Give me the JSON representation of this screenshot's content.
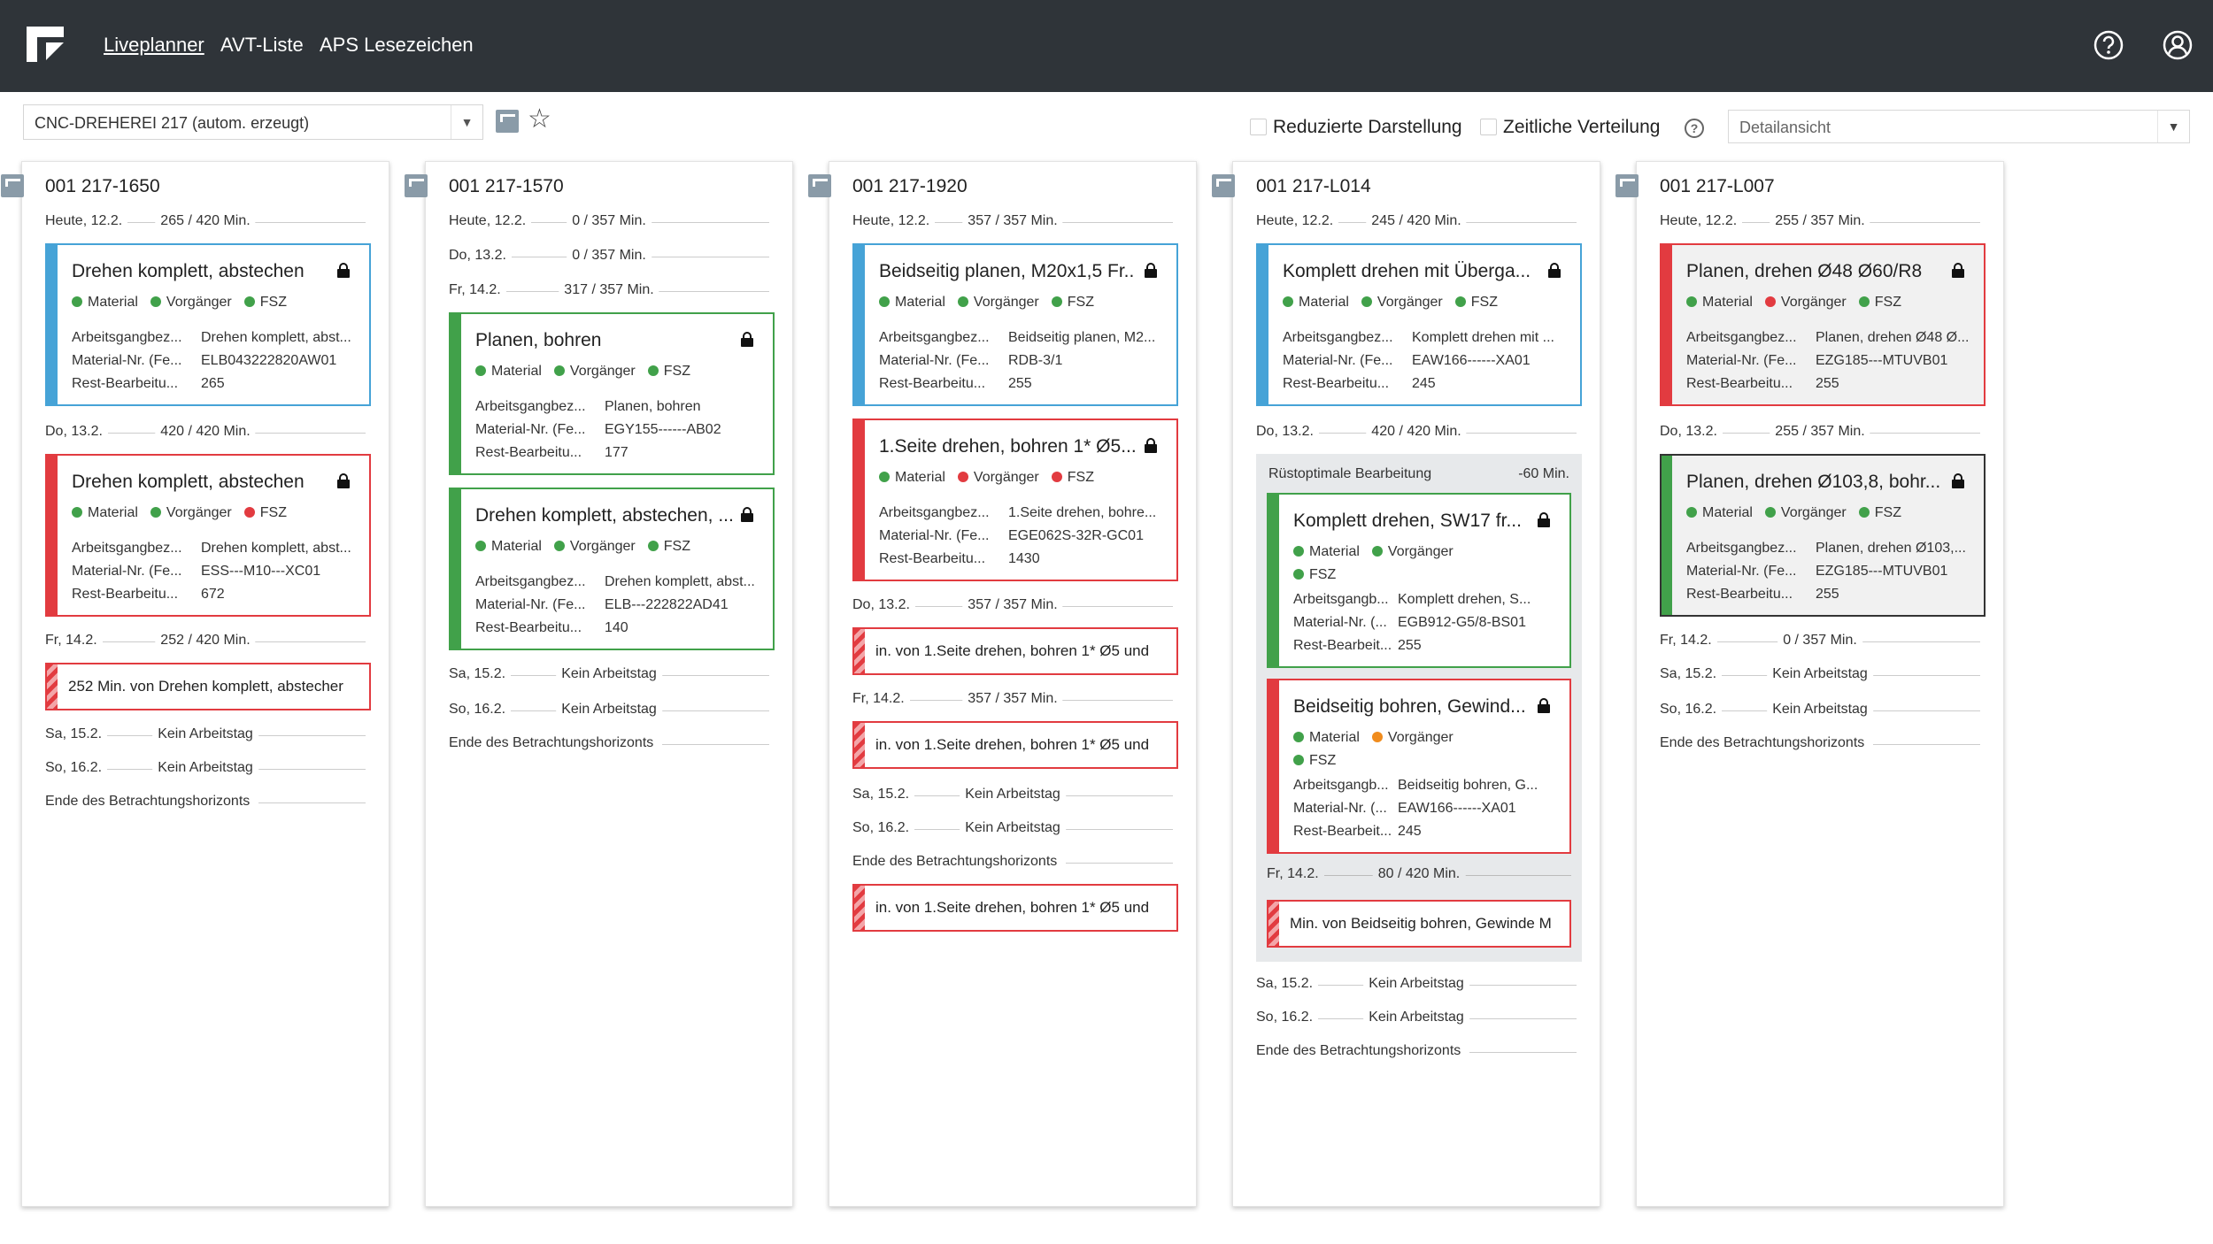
{
  "nav": {
    "items": [
      "Liveplanner",
      "AVT-Liste",
      "APS Lesezeichen"
    ],
    "help_icon": "help-icon",
    "user_icon": "user-icon"
  },
  "toolbar": {
    "resource": "CNC-DREHEREI 217 (autom. erzeugt)",
    "reduced": "Reduzierte Darstellung",
    "temporal": "Zeitliche Verteilung",
    "view": "Detailansicht"
  },
  "colors": {
    "blue": "#46a3d7",
    "red": "#e23b40",
    "green": "#41a14a",
    "orange": "#f08c1e",
    "header": "#2f3439"
  },
  "dot_labels": {
    "material": "Material",
    "pred": "Vorgänger",
    "fsz": "FSZ"
  },
  "columns": [
    {
      "title": "001 217-1650",
      "rows": [
        {
          "date": "Heute, 12.2.",
          "cap": "265 / 420 Min."
        },
        {
          "date": "Do, 13.2.",
          "cap": "420 / 420 Min."
        },
        {
          "date": "Fr, 14.2.",
          "cap": "252 / 420 Min."
        },
        {
          "date": "Sa, 15.2.",
          "cap": "Kein Arbeitstag"
        },
        {
          "date": "So, 16.2.",
          "cap": "Kein Arbeitstag"
        },
        {
          "date": "Ende des Betrachtungshorizonts",
          "cap": ""
        }
      ],
      "cards": [
        {
          "title": "Drehen komplett, abstechen",
          "k1": "Arbeitsgangbez...",
          "v1": "Drehen komplett, abst...",
          "k2": "Material-Nr. (Fe...",
          "v2": "ELB043222820AW01",
          "k3": "Rest-Bearbeitu...",
          "v3": "265"
        },
        {
          "title": "Drehen komplett, abstechen",
          "k1": "Arbeitsgangbez...",
          "v1": "Drehen komplett, abst...",
          "k2": "Material-Nr. (Fe...",
          "v2": "ESS---M10---XC01",
          "k3": "Rest-Bearbeitu...",
          "v3": "672"
        }
      ],
      "strips": [
        "252 Min. von Drehen komplett, abstecher"
      ]
    },
    {
      "title": "001 217-1570",
      "rows": [
        {
          "date": "Heute, 12.2.",
          "cap": "0 / 357 Min."
        },
        {
          "date": "Do, 13.2.",
          "cap": "0 / 357 Min."
        },
        {
          "date": "Fr, 14.2.",
          "cap": "317 / 357 Min."
        },
        {
          "date": "Sa, 15.2.",
          "cap": "Kein Arbeitstag"
        },
        {
          "date": "So, 16.2.",
          "cap": "Kein Arbeitstag"
        },
        {
          "date": "Ende des Betrachtungshorizonts",
          "cap": ""
        }
      ],
      "cards": [
        {
          "title": "Planen, bohren",
          "k1": "Arbeitsgangbez...",
          "v1": "Planen, bohren",
          "k2": "Material-Nr. (Fe...",
          "v2": "EGY155------AB02",
          "k3": "Rest-Bearbeitu...",
          "v3": "177"
        },
        {
          "title": "Drehen komplett, abstechen, ...",
          "k1": "Arbeitsgangbez...",
          "v1": "Drehen komplett, abst...",
          "k2": "Material-Nr. (Fe...",
          "v2": "ELB---222822AD41",
          "k3": "Rest-Bearbeitu...",
          "v3": "140"
        }
      ]
    },
    {
      "title": "001 217-1920",
      "rows": [
        {
          "date": "Heute, 12.2.",
          "cap": "357 / 357 Min."
        },
        {
          "date": "Do, 13.2.",
          "cap": "357 / 357 Min."
        },
        {
          "date": "Fr, 14.2.",
          "cap": "357 / 357 Min."
        },
        {
          "date": "Sa, 15.2.",
          "cap": "Kein Arbeitstag"
        },
        {
          "date": "So, 16.2.",
          "cap": "Kein Arbeitstag"
        },
        {
          "date": "Ende des Betrachtungshorizonts",
          "cap": ""
        }
      ],
      "cards": [
        {
          "title": "Beidseitig planen, M20x1,5 Fr...",
          "k1": "Arbeitsgangbez...",
          "v1": "Beidseitig planen, M2...",
          "k2": "Material-Nr. (Fe...",
          "v2": "RDB-3/1",
          "k3": "Rest-Bearbeitu...",
          "v3": "255"
        },
        {
          "title": "1.Seite drehen, bohren 1* Ø5...",
          "k1": "Arbeitsgangbez...",
          "v1": "1.Seite drehen, bohre...",
          "k2": "Material-Nr. (Fe...",
          "v2": "EGE062S-32R-GC01",
          "k3": "Rest-Bearbeitu...",
          "v3": "1430"
        }
      ],
      "strips": [
        "in. von 1.Seite drehen, bohren 1* Ø5 und",
        "in. von 1.Seite drehen, bohren 1* Ø5 und",
        "in. von 1.Seite drehen, bohren 1* Ø5 und"
      ]
    },
    {
      "title": "001 217-L014",
      "rows": [
        {
          "date": "Heute, 12.2.",
          "cap": "245 / 420 Min."
        },
        {
          "date": "Do, 13.2.",
          "cap": "420 / 420 Min."
        },
        {
          "date": "Fr, 14.2.",
          "cap": "80 / 420 Min."
        },
        {
          "date": "Sa, 15.2.",
          "cap": "Kein Arbeitstag"
        },
        {
          "date": "So, 16.2.",
          "cap": "Kein Arbeitstag"
        },
        {
          "date": "Ende des Betrachtungshorizonts",
          "cap": ""
        }
      ],
      "cards": [
        {
          "title": "Komplett drehen mit Überga...",
          "k1": "Arbeitsgangbez...",
          "v1": "Komplett drehen mit ...",
          "k2": "Material-Nr. (Fe...",
          "v2": "EAW166------XA01",
          "k3": "Rest-Bearbeitu...",
          "v3": "245"
        },
        {
          "title": "Komplett drehen, SW17 fr...",
          "k1": "Arbeitsgangb...",
          "v1": "Komplett drehen, S...",
          "k2": "Material-Nr. (...",
          "v2": "EGB912-G5/8-BS01",
          "k3": "Rest-Bearbeit...",
          "v3": "255"
        },
        {
          "title": "Beidseitig bohren, Gewind...",
          "k1": "Arbeitsgangb...",
          "v1": "Beidseitig bohren, G...",
          "k2": "Material-Nr. (...",
          "v2": "EAW166------XA01",
          "k3": "Rest-Bearbeit...",
          "v3": "245"
        }
      ],
      "group": {
        "label": "Rüstoptimale Bearbeitung",
        "value": "-60 Min."
      },
      "strips": [
        "Min. von Beidseitig bohren, Gewinde M"
      ]
    },
    {
      "title": "001 217-L007",
      "rows": [
        {
          "date": "Heute, 12.2.",
          "cap": "255 / 357 Min."
        },
        {
          "date": "Do, 13.2.",
          "cap": "255 / 357 Min."
        },
        {
          "date": "Fr, 14.2.",
          "cap": "0 / 357 Min."
        },
        {
          "date": "Sa, 15.2.",
          "cap": "Kein Arbeitstag"
        },
        {
          "date": "So, 16.2.",
          "cap": "Kein Arbeitstag"
        },
        {
          "date": "Ende des Betrachtungshorizonts",
          "cap": ""
        }
      ],
      "cards": [
        {
          "title": "Planen, drehen Ø48 Ø60/R8",
          "k1": "Arbeitsgangbez...",
          "v1": "Planen, drehen Ø48 Ø...",
          "k2": "Material-Nr. (Fe...",
          "v2": "EZG185---MTUVB01",
          "k3": "Rest-Bearbeitu...",
          "v3": "255"
        },
        {
          "title": "Planen, drehen Ø103,8, bohr...",
          "k1": "Arbeitsgangbez...",
          "v1": "Planen, drehen Ø103,...",
          "k2": "Material-Nr. (Fe...",
          "v2": "EZG185---MTUVB01",
          "k3": "Rest-Bearbeitu...",
          "v3": "255"
        }
      ]
    }
  ]
}
